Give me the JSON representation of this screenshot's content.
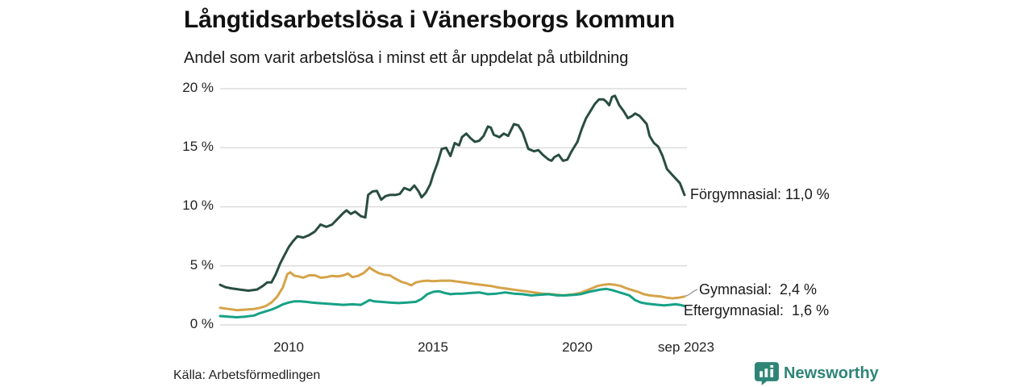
{
  "header": {
    "title": "Långtidsarbetslösa i Vänersborgs kommun",
    "subtitle": "Andel som varit arbetslösa i minst ett år uppdelat på utbildning"
  },
  "footer": {
    "source": "Källa: Arbetsförmedlingen",
    "brand": "Newsworthy"
  },
  "colors": {
    "forgymnasial": "#294d42",
    "gymnasial": "#d5a348",
    "eftergymnasial": "#16a185",
    "brand_teal": "#2e8577",
    "gridline": "#dcdcdc",
    "text": "#1a1a1a"
  },
  "chart_data": {
    "type": "line",
    "title": "Långtidsarbetslösa i Vänersborgs kommun",
    "subtitle": "Andel som varit arbetslösa i minst ett år uppdelat på utbildning",
    "xlabel": "",
    "ylabel": "",
    "ylim": [
      0,
      20
    ],
    "xlim": [
      2007.62,
      2023.71
    ],
    "grid": true,
    "legend_position": "end-of-line-labels",
    "yticks": [
      {
        "label": "20 %",
        "value": 20
      },
      {
        "label": "15 %",
        "value": 15
      },
      {
        "label": "10 %",
        "value": 10
      },
      {
        "label": "5 %",
        "value": 5
      },
      {
        "label": "0 %",
        "value": 0
      }
    ],
    "xticks": [
      {
        "label": "2010",
        "value": 2010
      },
      {
        "label": "2015",
        "value": 2015
      },
      {
        "label": "2020",
        "value": 2020
      },
      {
        "label": "sep 2023",
        "value": 2023.71
      }
    ],
    "series": [
      {
        "name": "Förgymnasial",
        "end_label": "Förgymnasial: 11,0 %",
        "last_value": "11,0 %",
        "color": "#294d42",
        "points": [
          [
            2007.62,
            3.4
          ],
          [
            2007.8,
            3.2
          ],
          [
            2008.0,
            3.1
          ],
          [
            2008.3,
            3.0
          ],
          [
            2008.6,
            2.9
          ],
          [
            2008.9,
            3.0
          ],
          [
            2009.1,
            3.3
          ],
          [
            2009.25,
            3.6
          ],
          [
            2009.4,
            3.6
          ],
          [
            2009.55,
            4.3
          ],
          [
            2009.7,
            5.2
          ],
          [
            2009.85,
            5.9
          ],
          [
            2010.0,
            6.6
          ],
          [
            2010.15,
            7.1
          ],
          [
            2010.3,
            7.5
          ],
          [
            2010.5,
            7.4
          ],
          [
            2010.7,
            7.6
          ],
          [
            2010.9,
            7.9
          ],
          [
            2011.1,
            8.5
          ],
          [
            2011.3,
            8.3
          ],
          [
            2011.5,
            8.5
          ],
          [
            2011.7,
            9.0
          ],
          [
            2011.9,
            9.5
          ],
          [
            2012.0,
            9.7
          ],
          [
            2012.15,
            9.4
          ],
          [
            2012.3,
            9.6
          ],
          [
            2012.5,
            9.2
          ],
          [
            2012.65,
            9.1
          ],
          [
            2012.75,
            11.0
          ],
          [
            2012.9,
            11.3
          ],
          [
            2013.05,
            11.35
          ],
          [
            2013.2,
            10.6
          ],
          [
            2013.35,
            10.9
          ],
          [
            2013.5,
            11.0
          ],
          [
            2013.7,
            11.0
          ],
          [
            2013.85,
            11.1
          ],
          [
            2014.0,
            11.6
          ],
          [
            2014.2,
            11.4
          ],
          [
            2014.35,
            11.8
          ],
          [
            2014.5,
            11.3
          ],
          [
            2014.6,
            10.8
          ],
          [
            2014.75,
            11.2
          ],
          [
            2014.9,
            11.9
          ],
          [
            2015.0,
            12.7
          ],
          [
            2015.15,
            13.7
          ],
          [
            2015.3,
            14.9
          ],
          [
            2015.45,
            15.0
          ],
          [
            2015.6,
            14.3
          ],
          [
            2015.75,
            15.4
          ],
          [
            2015.9,
            15.2
          ],
          [
            2016.0,
            15.9
          ],
          [
            2016.15,
            16.2
          ],
          [
            2016.3,
            15.8
          ],
          [
            2016.45,
            15.5
          ],
          [
            2016.6,
            15.6
          ],
          [
            2016.75,
            16.0
          ],
          [
            2016.9,
            16.8
          ],
          [
            2017.0,
            16.7
          ],
          [
            2017.1,
            16.1
          ],
          [
            2017.3,
            15.9
          ],
          [
            2017.45,
            16.2
          ],
          [
            2017.6,
            16.0
          ],
          [
            2017.8,
            17.0
          ],
          [
            2017.95,
            16.9
          ],
          [
            2018.1,
            16.3
          ],
          [
            2018.3,
            14.9
          ],
          [
            2018.5,
            14.7
          ],
          [
            2018.65,
            14.8
          ],
          [
            2018.8,
            14.4
          ],
          [
            2019.0,
            14.0
          ],
          [
            2019.1,
            13.9
          ],
          [
            2019.2,
            14.2
          ],
          [
            2019.35,
            14.4
          ],
          [
            2019.5,
            13.9
          ],
          [
            2019.65,
            14.0
          ],
          [
            2019.8,
            14.7
          ],
          [
            2020.0,
            15.5
          ],
          [
            2020.15,
            16.6
          ],
          [
            2020.3,
            17.5
          ],
          [
            2020.45,
            18.1
          ],
          [
            2020.6,
            18.7
          ],
          [
            2020.75,
            19.1
          ],
          [
            2020.9,
            19.1
          ],
          [
            2021.0,
            18.9
          ],
          [
            2021.1,
            18.6
          ],
          [
            2021.2,
            19.3
          ],
          [
            2021.3,
            19.4
          ],
          [
            2021.45,
            18.6
          ],
          [
            2021.6,
            18.1
          ],
          [
            2021.75,
            17.5
          ],
          [
            2021.9,
            17.7
          ],
          [
            2022.0,
            17.9
          ],
          [
            2022.15,
            17.7
          ],
          [
            2022.3,
            17.3
          ],
          [
            2022.4,
            17.0
          ],
          [
            2022.5,
            16.0
          ],
          [
            2022.65,
            15.4
          ],
          [
            2022.8,
            15.1
          ],
          [
            2022.95,
            14.3
          ],
          [
            2023.1,
            13.2
          ],
          [
            2023.25,
            12.8
          ],
          [
            2023.4,
            12.4
          ],
          [
            2023.55,
            12.0
          ],
          [
            2023.71,
            11.0
          ]
        ]
      },
      {
        "name": "Gymnasial",
        "end_label": "Gymnasial:  2,4 %",
        "last_value": "2,4 %",
        "color": "#d5a348",
        "points": [
          [
            2007.62,
            1.45
          ],
          [
            2007.9,
            1.35
          ],
          [
            2008.2,
            1.25
          ],
          [
            2008.5,
            1.3
          ],
          [
            2008.8,
            1.35
          ],
          [
            2009.0,
            1.45
          ],
          [
            2009.2,
            1.6
          ],
          [
            2009.4,
            1.9
          ],
          [
            2009.6,
            2.4
          ],
          [
            2009.8,
            3.2
          ],
          [
            2009.95,
            4.3
          ],
          [
            2010.05,
            4.45
          ],
          [
            2010.2,
            4.15
          ],
          [
            2010.35,
            4.1
          ],
          [
            2010.5,
            4.0
          ],
          [
            2010.7,
            4.2
          ],
          [
            2010.9,
            4.2
          ],
          [
            2011.1,
            4.0
          ],
          [
            2011.3,
            4.05
          ],
          [
            2011.5,
            4.15
          ],
          [
            2011.7,
            4.1
          ],
          [
            2011.9,
            4.2
          ],
          [
            2012.05,
            4.35
          ],
          [
            2012.2,
            4.05
          ],
          [
            2012.4,
            4.15
          ],
          [
            2012.6,
            4.4
          ],
          [
            2012.8,
            4.85
          ],
          [
            2012.95,
            4.6
          ],
          [
            2013.1,
            4.4
          ],
          [
            2013.3,
            4.25
          ],
          [
            2013.5,
            4.2
          ],
          [
            2013.7,
            3.9
          ],
          [
            2013.9,
            3.65
          ],
          [
            2014.1,
            3.5
          ],
          [
            2014.25,
            3.35
          ],
          [
            2014.4,
            3.6
          ],
          [
            2014.6,
            3.7
          ],
          [
            2014.8,
            3.75
          ],
          [
            2015.0,
            3.7
          ],
          [
            2015.3,
            3.75
          ],
          [
            2015.6,
            3.75
          ],
          [
            2015.9,
            3.65
          ],
          [
            2016.2,
            3.55
          ],
          [
            2016.5,
            3.45
          ],
          [
            2016.8,
            3.35
          ],
          [
            2017.0,
            3.3
          ],
          [
            2017.3,
            3.15
          ],
          [
            2017.6,
            3.05
          ],
          [
            2017.9,
            2.95
          ],
          [
            2018.2,
            2.85
          ],
          [
            2018.5,
            2.75
          ],
          [
            2018.8,
            2.65
          ],
          [
            2019.1,
            2.6
          ],
          [
            2019.3,
            2.55
          ],
          [
            2019.5,
            2.5
          ],
          [
            2019.7,
            2.55
          ],
          [
            2019.9,
            2.6
          ],
          [
            2020.1,
            2.7
          ],
          [
            2020.3,
            2.9
          ],
          [
            2020.5,
            3.1
          ],
          [
            2020.7,
            3.3
          ],
          [
            2020.9,
            3.4
          ],
          [
            2021.1,
            3.45
          ],
          [
            2021.3,
            3.4
          ],
          [
            2021.5,
            3.3
          ],
          [
            2021.7,
            3.1
          ],
          [
            2021.9,
            2.95
          ],
          [
            2022.1,
            2.8
          ],
          [
            2022.3,
            2.6
          ],
          [
            2022.5,
            2.5
          ],
          [
            2022.7,
            2.45
          ],
          [
            2022.9,
            2.4
          ],
          [
            2023.1,
            2.3
          ],
          [
            2023.3,
            2.25
          ],
          [
            2023.5,
            2.3
          ],
          [
            2023.71,
            2.4
          ]
        ]
      },
      {
        "name": "Eftergymnasial",
        "end_label": "Eftergymnasial:  1,6 %",
        "last_value": "1,6 %",
        "color": "#16a185",
        "points": [
          [
            2007.62,
            0.75
          ],
          [
            2007.9,
            0.7
          ],
          [
            2008.2,
            0.65
          ],
          [
            2008.5,
            0.7
          ],
          [
            2008.8,
            0.8
          ],
          [
            2009.0,
            1.0
          ],
          [
            2009.2,
            1.15
          ],
          [
            2009.4,
            1.3
          ],
          [
            2009.6,
            1.5
          ],
          [
            2009.8,
            1.75
          ],
          [
            2010.0,
            1.9
          ],
          [
            2010.2,
            2.0
          ],
          [
            2010.4,
            2.0
          ],
          [
            2010.6,
            1.95
          ],
          [
            2010.8,
            1.9
          ],
          [
            2011.0,
            1.85
          ],
          [
            2011.3,
            1.8
          ],
          [
            2011.6,
            1.75
          ],
          [
            2011.9,
            1.7
          ],
          [
            2012.2,
            1.75
          ],
          [
            2012.5,
            1.7
          ],
          [
            2012.8,
            2.1
          ],
          [
            2012.95,
            2.0
          ],
          [
            2013.2,
            1.95
          ],
          [
            2013.5,
            1.9
          ],
          [
            2013.8,
            1.85
          ],
          [
            2014.1,
            1.9
          ],
          [
            2014.4,
            1.95
          ],
          [
            2014.6,
            2.2
          ],
          [
            2014.8,
            2.6
          ],
          [
            2015.0,
            2.8
          ],
          [
            2015.2,
            2.85
          ],
          [
            2015.4,
            2.7
          ],
          [
            2015.6,
            2.6
          ],
          [
            2015.8,
            2.65
          ],
          [
            2016.0,
            2.65
          ],
          [
            2016.3,
            2.7
          ],
          [
            2016.6,
            2.75
          ],
          [
            2016.9,
            2.6
          ],
          [
            2017.2,
            2.65
          ],
          [
            2017.5,
            2.75
          ],
          [
            2017.8,
            2.65
          ],
          [
            2018.1,
            2.6
          ],
          [
            2018.4,
            2.5
          ],
          [
            2018.7,
            2.55
          ],
          [
            2019.0,
            2.6
          ],
          [
            2019.3,
            2.5
          ],
          [
            2019.6,
            2.5
          ],
          [
            2019.9,
            2.55
          ],
          [
            2020.1,
            2.6
          ],
          [
            2020.4,
            2.8
          ],
          [
            2020.6,
            2.9
          ],
          [
            2020.8,
            3.0
          ],
          [
            2021.0,
            3.05
          ],
          [
            2021.2,
            2.95
          ],
          [
            2021.4,
            2.8
          ],
          [
            2021.6,
            2.65
          ],
          [
            2021.8,
            2.5
          ],
          [
            2022.0,
            2.1
          ],
          [
            2022.2,
            1.9
          ],
          [
            2022.4,
            1.8
          ],
          [
            2022.6,
            1.75
          ],
          [
            2022.8,
            1.7
          ],
          [
            2023.0,
            1.65
          ],
          [
            2023.2,
            1.7
          ],
          [
            2023.4,
            1.75
          ],
          [
            2023.55,
            1.7
          ],
          [
            2023.71,
            1.6
          ]
        ]
      }
    ]
  }
}
